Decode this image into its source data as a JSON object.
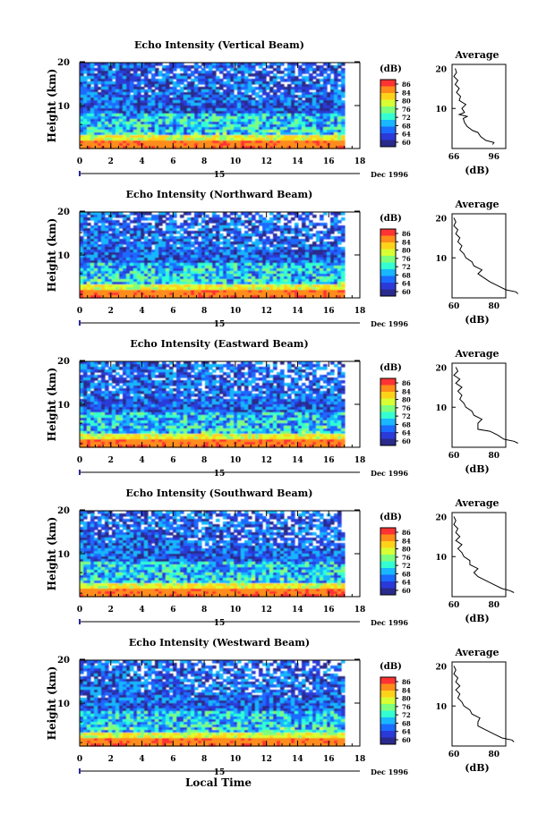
{
  "page": {
    "xlabel_bottom": "Local Time"
  },
  "colorbar": {
    "unit": "(dB)",
    "ticks": [
      "86",
      "84",
      "80",
      "76",
      "72",
      "68",
      "64",
      "60"
    ],
    "colors": [
      "#ff3333",
      "#ff8c1a",
      "#ffd21a",
      "#d8ff33",
      "#7dff7d",
      "#33ffd2",
      "#19b7ff",
      "#1a6bff",
      "#2a3ad8",
      "#2a2a8c"
    ]
  },
  "chart_data": [
    {
      "type": "heatmap",
      "title": "Echo Intensity (Vertical Beam)",
      "ylabel": "Height (km)",
      "y_ticks": [
        "20",
        "10"
      ],
      "x_ticks": [
        "0",
        "2",
        "4",
        "6",
        "8",
        "10",
        "12",
        "14",
        "16",
        "18"
      ],
      "date_label": "Dec 1996",
      "date_marker": "15",
      "average": {
        "title": "Average",
        "xlabel": "(dB)",
        "x_ticks": [
          "66",
          "96"
        ],
        "y_ticks": [
          "20",
          "10"
        ],
        "profile": [
          [
            95,
            1
          ],
          [
            96,
            1.5
          ],
          [
            90,
            2
          ],
          [
            86,
            3
          ],
          [
            84,
            4
          ],
          [
            80,
            4.5
          ],
          [
            76,
            5.5
          ],
          [
            74,
            6.5
          ],
          [
            73,
            7.5
          ],
          [
            76,
            8
          ],
          [
            70,
            8.5
          ],
          [
            74,
            9
          ],
          [
            72,
            10
          ],
          [
            75,
            11
          ],
          [
            70,
            12
          ],
          [
            71,
            13
          ],
          [
            68,
            14
          ],
          [
            70,
            15
          ],
          [
            67,
            16
          ],
          [
            69,
            17
          ],
          [
            66,
            18
          ],
          [
            68,
            19
          ],
          [
            67,
            20
          ]
        ]
      }
    },
    {
      "type": "heatmap",
      "title": "Echo Intensity (Northward Beam)",
      "ylabel": "Height (km)",
      "y_ticks": [
        "20",
        "10"
      ],
      "x_ticks": [
        "0",
        "2",
        "4",
        "6",
        "8",
        "10",
        "12",
        "14",
        "16",
        "18"
      ],
      "date_label": "Dec 1996",
      "date_marker": "15",
      "average": {
        "title": "Average",
        "xlabel": "(dB)",
        "x_ticks": [
          "60",
          "80"
        ],
        "y_ticks": [
          "20",
          "10"
        ],
        "profile": [
          [
            92,
            1
          ],
          [
            91,
            1.5
          ],
          [
            86,
            2
          ],
          [
            82,
            3
          ],
          [
            78,
            4
          ],
          [
            75,
            5
          ],
          [
            72,
            6
          ],
          [
            74,
            7
          ],
          [
            70,
            8
          ],
          [
            69,
            9
          ],
          [
            66,
            10
          ],
          [
            65,
            11
          ],
          [
            63,
            12
          ],
          [
            64,
            13
          ],
          [
            62,
            14
          ],
          [
            63,
            15
          ],
          [
            61,
            16
          ],
          [
            62,
            17
          ],
          [
            60,
            18
          ],
          [
            61,
            19
          ],
          [
            60,
            20
          ]
        ]
      }
    },
    {
      "type": "heatmap",
      "title": "Echo Intensity (Eastward Beam)",
      "ylabel": "Height (km)",
      "y_ticks": [
        "20",
        "10"
      ],
      "x_ticks": [
        "0",
        "2",
        "4",
        "6",
        "8",
        "10",
        "12",
        "14",
        "16",
        "18"
      ],
      "date_label": "Dec 1996",
      "date_marker": "15",
      "average": {
        "title": "Average",
        "xlabel": "(dB)",
        "x_ticks": [
          "60",
          "80"
        ],
        "y_ticks": [
          "20",
          "10"
        ],
        "profile": [
          [
            92,
            1
          ],
          [
            90,
            1.5
          ],
          [
            85,
            2
          ],
          [
            82,
            3
          ],
          [
            78,
            4
          ],
          [
            72,
            4.5
          ],
          [
            72,
            6
          ],
          [
            74,
            7
          ],
          [
            70,
            8
          ],
          [
            69,
            9
          ],
          [
            66,
            10
          ],
          [
            65,
            11
          ],
          [
            63,
            12
          ],
          [
            64,
            13
          ],
          [
            62,
            14
          ],
          [
            64,
            15
          ],
          [
            61,
            16
          ],
          [
            63,
            17
          ],
          [
            60,
            18
          ],
          [
            62,
            19
          ],
          [
            61,
            20
          ]
        ]
      }
    },
    {
      "type": "heatmap",
      "title": "Echo Intensity (Southward Beam)",
      "ylabel": "Height (km)",
      "y_ticks": [
        "20",
        "10"
      ],
      "x_ticks": [
        "0",
        "2",
        "4",
        "6",
        "8",
        "10",
        "12",
        "14",
        "16",
        "18"
      ],
      "date_label": "Dec 1996",
      "date_marker": "15",
      "average": {
        "title": "Average",
        "xlabel": "(dB)",
        "x_ticks": [
          "60",
          "80"
        ],
        "y_ticks": [
          "20",
          "10"
        ],
        "profile": [
          [
            90,
            1
          ],
          [
            88,
            1.5
          ],
          [
            84,
            2
          ],
          [
            80,
            3
          ],
          [
            76,
            4
          ],
          [
            72,
            5
          ],
          [
            70,
            6
          ],
          [
            72,
            7
          ],
          [
            68,
            8
          ],
          [
            68,
            9
          ],
          [
            65,
            10
          ],
          [
            64,
            11
          ],
          [
            62,
            12
          ],
          [
            64,
            13
          ],
          [
            61,
            14
          ],
          [
            63,
            15
          ],
          [
            61,
            16
          ],
          [
            62,
            17
          ],
          [
            60,
            18
          ],
          [
            61,
            19
          ],
          [
            60,
            20
          ]
        ]
      }
    },
    {
      "type": "heatmap",
      "title": "Echo Intensity (Westward Beam)",
      "ylabel": "Height (km)",
      "y_ticks": [
        "20",
        "10"
      ],
      "x_ticks": [
        "0",
        "2",
        "4",
        "6",
        "8",
        "10",
        "12",
        "14",
        "16",
        "18"
      ],
      "date_label": "Dec 1996",
      "date_marker": "15",
      "average": {
        "title": "Average",
        "xlabel": "(dB)",
        "x_ticks": [
          "60",
          "80"
        ],
        "y_ticks": [
          "20",
          "10"
        ],
        "profile": [
          [
            90,
            1
          ],
          [
            89,
            1.5
          ],
          [
            84,
            2
          ],
          [
            80,
            3
          ],
          [
            76,
            4
          ],
          [
            72,
            5
          ],
          [
            72,
            6
          ],
          [
            73,
            7
          ],
          [
            69,
            8
          ],
          [
            68,
            9
          ],
          [
            65,
            10
          ],
          [
            64,
            11
          ],
          [
            62,
            12
          ],
          [
            63,
            13
          ],
          [
            61,
            14
          ],
          [
            63,
            15
          ],
          [
            61,
            16
          ],
          [
            62,
            17
          ],
          [
            60,
            18
          ],
          [
            61,
            19
          ],
          [
            60,
            20
          ]
        ]
      }
    }
  ]
}
